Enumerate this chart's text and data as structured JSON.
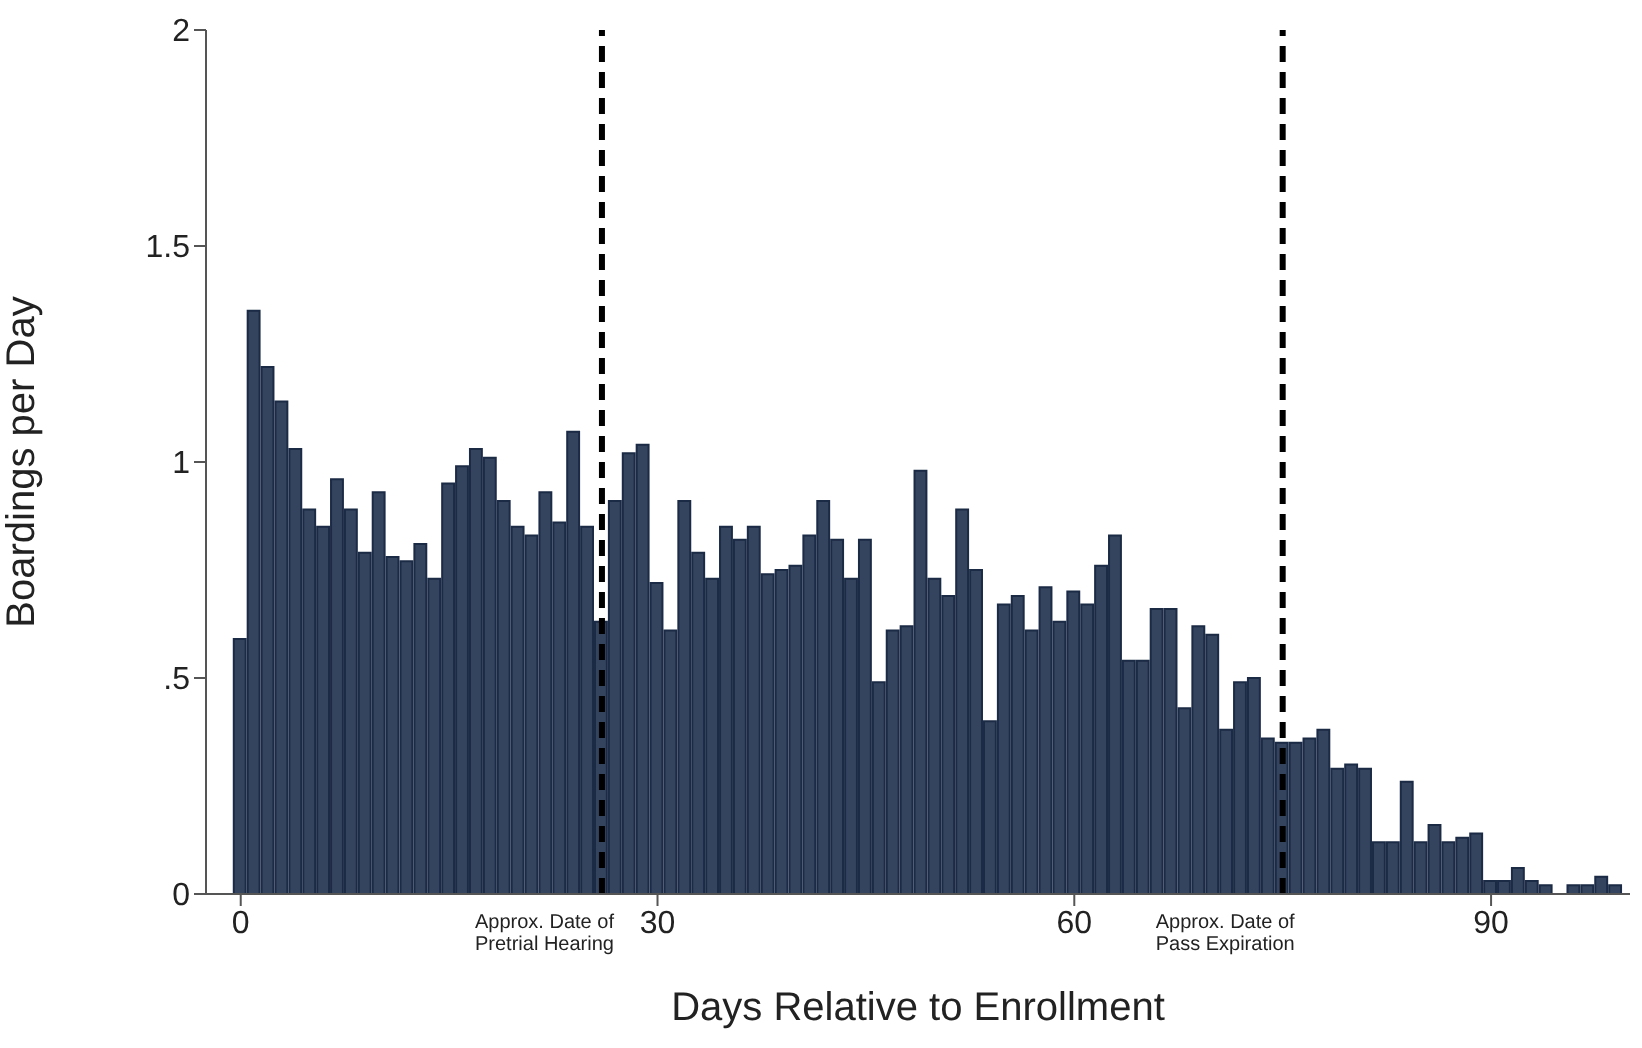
{
  "chart_data": {
    "type": "bar",
    "xlabel": "Days Relative to Enrollment",
    "ylabel": "Boardings per Day",
    "x": [
      0,
      1,
      2,
      3,
      4,
      5,
      6,
      7,
      8,
      9,
      10,
      11,
      12,
      13,
      14,
      15,
      16,
      17,
      18,
      19,
      20,
      21,
      22,
      23,
      24,
      25,
      26,
      27,
      28,
      29,
      30,
      31,
      32,
      33,
      34,
      35,
      36,
      37,
      38,
      39,
      40,
      41,
      42,
      43,
      44,
      45,
      46,
      47,
      48,
      49,
      50,
      51,
      52,
      53,
      54,
      55,
      56,
      57,
      58,
      59,
      60,
      61,
      62,
      63,
      64,
      65,
      66,
      67,
      68,
      69,
      70,
      71,
      72,
      73,
      74,
      75,
      76,
      77,
      78,
      79,
      80,
      81,
      82,
      83,
      84,
      85,
      86,
      87,
      88,
      89,
      90,
      91,
      92,
      93,
      94,
      95,
      96,
      97,
      98,
      99
    ],
    "values": [
      0.59,
      1.35,
      1.22,
      1.14,
      1.03,
      0.89,
      0.85,
      0.96,
      0.89,
      0.79,
      0.93,
      0.78,
      0.77,
      0.81,
      0.73,
      0.95,
      0.99,
      1.03,
      1.01,
      0.91,
      0.85,
      0.83,
      0.93,
      0.86,
      1.07,
      0.85,
      0.63,
      0.91,
      1.02,
      1.04,
      0.72,
      0.61,
      0.91,
      0.79,
      0.73,
      0.85,
      0.82,
      0.85,
      0.74,
      0.75,
      0.76,
      0.83,
      0.91,
      0.82,
      0.73,
      0.82,
      0.49,
      0.61,
      0.62,
      0.98,
      0.73,
      0.69,
      0.89,
      0.75,
      0.4,
      0.67,
      0.69,
      0.61,
      0.71,
      0.63,
      0.7,
      0.67,
      0.76,
      0.83,
      0.54,
      0.54,
      0.66,
      0.66,
      0.43,
      0.62,
      0.6,
      0.38,
      0.49,
      0.5,
      0.36,
      0.35,
      0.35,
      0.36,
      0.38,
      0.29,
      0.3,
      0.29,
      0.12,
      0.12,
      0.26,
      0.12,
      0.16,
      0.12,
      0.13,
      0.14,
      0.03,
      0.03,
      0.06,
      0.03,
      0.02,
      0,
      0.02,
      0.02,
      0.04,
      0.02
    ],
    "color": "#34435e",
    "xlim": [
      -2.5,
      100
    ],
    "xticks": [
      0,
      30,
      60,
      90
    ],
    "ylim": [
      0,
      2
    ],
    "yticks": [
      0,
      {
        "value": 0.5,
        "label": ".5"
      },
      1,
      {
        "value": 1.5,
        "label": "1.5"
      },
      2
    ],
    "ref_lines": [
      {
        "axis": "x",
        "value": 26,
        "label": "Approx. Date of Pretrial Hearing",
        "color": "#000000",
        "line_style": "dashed"
      },
      {
        "axis": "x",
        "value": 75,
        "label": "Approx. Date of Pass Expiration",
        "color": "#000000",
        "line_style": "dashed"
      }
    ],
    "grid": false,
    "legend": false
  }
}
